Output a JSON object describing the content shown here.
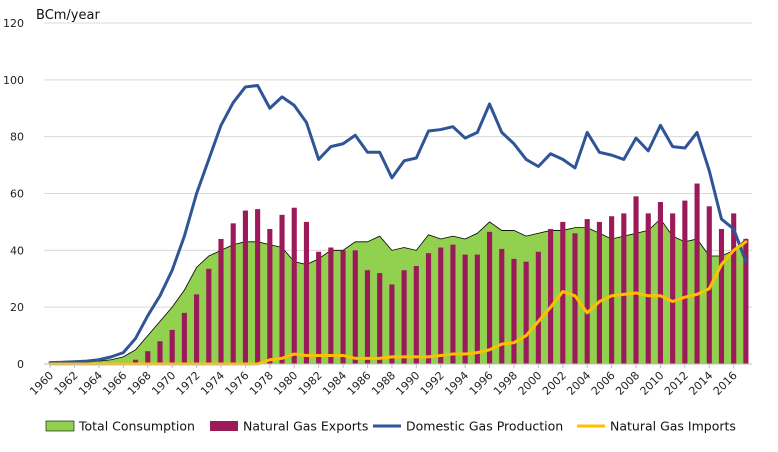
{
  "chart_data": {
    "type": "bar+area+line",
    "ylabel": "BCm/year",
    "ylim": [
      0,
      120
    ],
    "yticks": [
      0,
      20,
      40,
      60,
      80,
      100,
      120
    ],
    "x": [
      1960,
      1961,
      1962,
      1963,
      1964,
      1965,
      1966,
      1967,
      1968,
      1969,
      1970,
      1971,
      1972,
      1973,
      1974,
      1975,
      1976,
      1977,
      1978,
      1979,
      1980,
      1981,
      1982,
      1983,
      1984,
      1985,
      1986,
      1987,
      1988,
      1989,
      1990,
      1991,
      1992,
      1993,
      1994,
      1995,
      1996,
      1997,
      1998,
      1999,
      2000,
      2001,
      2002,
      2003,
      2004,
      2005,
      2006,
      2007,
      2008,
      2009,
      2010,
      2011,
      2012,
      2013,
      2014,
      2015,
      2016,
      2017
    ],
    "xtick_labels": [
      "1960",
      "1962",
      "1964",
      "1966",
      "1968",
      "1970",
      "1972",
      "1974",
      "1976",
      "1978",
      "1980",
      "1982",
      "1984",
      "1986",
      "1988",
      "1990",
      "1992",
      "1994",
      "1996",
      "1998",
      "2000",
      "2002",
      "2004",
      "2006",
      "2008",
      "2010",
      "2012",
      "2014",
      "2016"
    ],
    "legend_position": "bottom",
    "series": [
      {
        "name": "Total Consumption",
        "kind": "area",
        "color": "#92D050",
        "values": [
          0.5,
          0.5,
          0.6,
          0.8,
          1.0,
          1.5,
          2.5,
          5,
          10,
          15,
          20,
          26,
          34,
          38,
          40,
          42,
          43,
          43,
          42,
          41,
          36,
          35,
          37,
          40,
          40,
          43,
          43,
          45,
          40,
          41,
          40,
          45.5,
          44,
          45,
          44,
          46,
          50,
          47,
          47,
          45,
          46,
          47,
          47,
          48,
          48,
          46,
          44,
          45,
          46,
          47,
          51,
          45,
          43,
          44,
          38,
          38,
          40,
          44
        ]
      },
      {
        "name": "Natural Gas Exports",
        "kind": "bar",
        "color": "#9B1B5A",
        "values": [
          0,
          0,
          0,
          0,
          0,
          0,
          0,
          1.5,
          4.5,
          8,
          12,
          18,
          24.5,
          33.5,
          44,
          49.5,
          54,
          54.5,
          47.5,
          52.5,
          55,
          50,
          39.5,
          41,
          40,
          40,
          33,
          32,
          28,
          33,
          34.5,
          39,
          41,
          42,
          38.5,
          38.5,
          46.5,
          40.5,
          37,
          36,
          39.5,
          47.5,
          50,
          46,
          51,
          50,
          52,
          53,
          59,
          53,
          57,
          53,
          57.5,
          63.5,
          55.5,
          47.5,
          53,
          44
        ]
      },
      {
        "name": "Domestic Gas Production",
        "kind": "line",
        "color": "#2F5597",
        "values": [
          0.5,
          0.6,
          0.8,
          1.0,
          1.5,
          2.5,
          4,
          9,
          17,
          24,
          33,
          45,
          60,
          72,
          84,
          92,
          97.5,
          98,
          90,
          94,
          91,
          85,
          72,
          76.5,
          77.5,
          80.5,
          74.5,
          74.5,
          65.5,
          71.5,
          72.5,
          82,
          82.5,
          83.5,
          79.5,
          81.5,
          91.5,
          81.5,
          77.5,
          72,
          69.5,
          74,
          72,
          69,
          81.5,
          74.5,
          73.5,
          72,
          79.5,
          75,
          84,
          76.5,
          76,
          81.5,
          68,
          51,
          47.5,
          36
        ]
      },
      {
        "name": "Natural Gas Imports",
        "kind": "line",
        "color": "#FFC000",
        "values": [
          0,
          0,
          0,
          0,
          0,
          0,
          0,
          0,
          0,
          0,
          0,
          0,
          0,
          0,
          0,
          0,
          0,
          0,
          1.5,
          2,
          3.5,
          3,
          3,
          3,
          3,
          2,
          2,
          2,
          2.5,
          2.5,
          2.5,
          2.5,
          3,
          3.5,
          3.5,
          4,
          5,
          7,
          7.5,
          10,
          15,
          20,
          25.5,
          24,
          18,
          22,
          24,
          24.5,
          25,
          24,
          24,
          22,
          23.5,
          24.5,
          26.5,
          35,
          40,
          43
        ]
      }
    ]
  }
}
